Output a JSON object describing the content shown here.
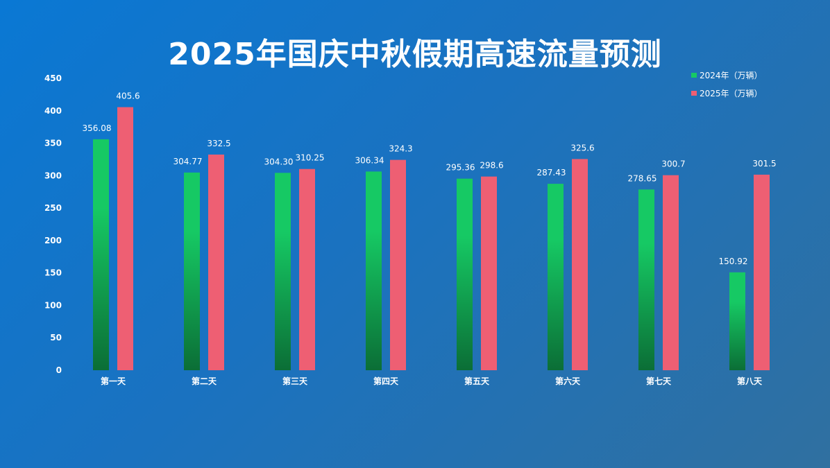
{
  "chart_data": {
    "type": "bar",
    "title": "2025年国庆中秋假期高速流量预测",
    "categories": [
      "第一天",
      "第二天",
      "第三天",
      "第四天",
      "第五天",
      "第六天",
      "第七天",
      "第八天"
    ],
    "series": [
      {
        "name": "2024年（万辆）",
        "values": [
          356.08,
          304.77,
          304.3,
          306.34,
          295.36,
          287.43,
          278.65,
          150.92
        ],
        "labels": [
          "356.08",
          "304.77",
          "304.30",
          "306.34",
          "295.36",
          "287.43",
          "278.65",
          "150.92"
        ],
        "color": "#16c964",
        "color_bottom": "#0b6e36"
      },
      {
        "name": "2025年（万辆）",
        "values": [
          405.6,
          332.5,
          310.25,
          324.3,
          298.6,
          325.6,
          300.7,
          301.5
        ],
        "labels": [
          "405.6",
          "332.5",
          "310.25",
          "324.3",
          "298.6",
          "325.6",
          "300.7",
          "301.5"
        ],
        "color": "#ee5f73"
      }
    ],
    "ylim": [
      0,
      450
    ],
    "yticks": [
      "0",
      "50",
      "100",
      "150",
      "200",
      "250",
      "300",
      "350",
      "400",
      "450"
    ],
    "grid": false,
    "legend": "top-right"
  }
}
